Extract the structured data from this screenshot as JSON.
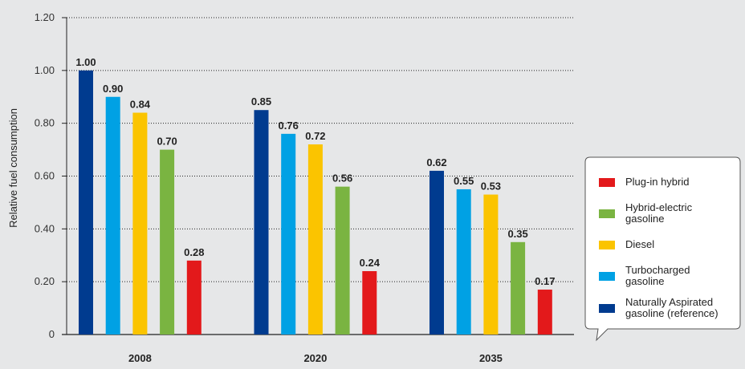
{
  "chart_data": {
    "type": "bar",
    "title": "",
    "xlabel": "",
    "ylabel": "Relative fuel consumption",
    "ylim": [
      0,
      1.2
    ],
    "yticks": [
      "0",
      "0.20",
      "0.40",
      "0.60",
      "0.80",
      "1.00",
      "1.20"
    ],
    "ytick_values": [
      0,
      0.2,
      0.4,
      0.6,
      0.8,
      1.0,
      1.2
    ],
    "grid": "dotted horizontal",
    "legend_position": "right",
    "categories": [
      "2008",
      "2020",
      "2035"
    ],
    "series": [
      {
        "name": "Naturally Aspirated gasoline (reference)",
        "legend_lines": [
          "Naturally Aspirated",
          "gasoline (reference)"
        ],
        "color": "#003b8f",
        "values": [
          1.0,
          0.85,
          0.62
        ],
        "labels": [
          "1.00",
          "0.85",
          "0.62"
        ]
      },
      {
        "name": "Turbocharged gasoline",
        "legend_lines": [
          "Turbocharged",
          "gasoline"
        ],
        "color": "#00a1e4",
        "values": [
          0.9,
          0.76,
          0.55
        ],
        "labels": [
          "0.90",
          "0.76",
          "0.55"
        ]
      },
      {
        "name": "Diesel",
        "legend_lines": [
          "Diesel"
        ],
        "color": "#fbc400",
        "values": [
          0.84,
          0.72,
          0.53
        ],
        "labels": [
          "0.84",
          "0.72",
          "0.53"
        ]
      },
      {
        "name": "Hybrid-electric gasoline",
        "legend_lines": [
          "Hybrid-electric",
          "gasoline"
        ],
        "color": "#7ab441",
        "values": [
          0.7,
          0.56,
          0.35
        ],
        "labels": [
          "0.70",
          "0.56",
          "0.35"
        ]
      },
      {
        "name": "Plug-in hybrid",
        "legend_lines": [
          "Plug-in hybrid"
        ],
        "color": "#e3191b",
        "values": [
          0.28,
          0.24,
          0.17
        ],
        "labels": [
          "0.28",
          "0.24",
          "0.17"
        ]
      }
    ],
    "legend_order": [
      "Plug-in hybrid",
      "Hybrid-electric gasoline",
      "Diesel",
      "Turbocharged gasoline",
      "Naturally Aspirated gasoline (reference)"
    ]
  }
}
